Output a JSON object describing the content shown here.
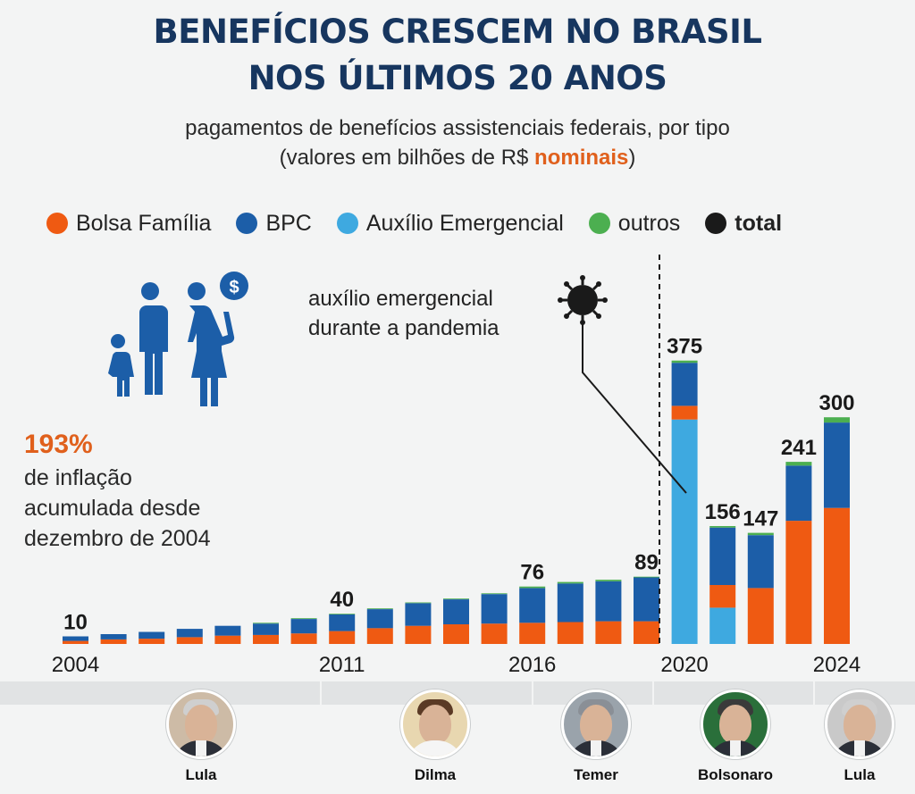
{
  "title": {
    "line1": "BENEFÍCIOS CRESCEM NO BRASIL",
    "line2": "NOS ÚLTIMOS 20 ANOS"
  },
  "subtitle": {
    "line1": "pagamentos de benefícios assistenciais federais, por tipo",
    "line2_prefix": "(valores em bilhões de R$ ",
    "line2_highlight": "nominais",
    "line2_suffix": ")"
  },
  "legend": [
    {
      "label": "Bolsa Família",
      "color": "#ef5a12",
      "bold": false
    },
    {
      "label": "BPC",
      "color": "#1c5ea8",
      "bold": false
    },
    {
      "label": "Auxílio Emergencial",
      "color": "#3ea9e0",
      "bold": false
    },
    {
      "label": "outros",
      "color": "#4caf50",
      "bold": false
    },
    {
      "label": "total",
      "color": "#1a1a1a",
      "bold": true
    }
  ],
  "inflation": {
    "value": "193%",
    "line1": "de inflação",
    "line2": "acumulada desde",
    "line3": "dezembro de 2004"
  },
  "annotation": {
    "line1": "auxílio emergencial",
    "line2": "durante a pandemia"
  },
  "presidents": [
    {
      "name": "Lula"
    },
    {
      "name": "Dilma"
    },
    {
      "name": "Temer"
    },
    {
      "name": "Bolsonaro"
    },
    {
      "name": "Lula"
    }
  ],
  "chart_data": {
    "type": "bar",
    "stacked": true,
    "categories": [
      "2004",
      "2005",
      "2006",
      "2007",
      "2008",
      "2009",
      "2010",
      "2011",
      "2012",
      "2013",
      "2014",
      "2015",
      "2016",
      "2017",
      "2018",
      "2019",
      "2020",
      "2021",
      "2022",
      "2023",
      "2024"
    ],
    "x_tick_labels": [
      "2004",
      "2011",
      "2016",
      "2020",
      "2024"
    ],
    "series": [
      {
        "name": "Bolsa Família",
        "color": "#ef5a12",
        "values": [
          4,
          6,
          7,
          9,
          11,
          12,
          14,
          17,
          21,
          24,
          26,
          27,
          28,
          29,
          30,
          30,
          18,
          30,
          74,
          163,
          180
        ]
      },
      {
        "name": "BPC",
        "color": "#1c5ea8",
        "values": [
          6,
          7,
          9,
          11,
          13,
          15,
          19,
          22,
          25,
          30,
          33,
          39,
          46,
          51,
          53,
          58,
          57,
          76,
          70,
          73,
          113
        ]
      },
      {
        "name": "Auxílio Emergencial",
        "color": "#3ea9e0",
        "values": [
          0,
          0,
          0,
          0,
          0,
          0,
          0,
          0,
          0,
          0,
          0,
          0,
          0,
          0,
          0,
          0,
          297,
          48,
          0,
          0,
          0
        ]
      },
      {
        "name": "outros",
        "color": "#4caf50",
        "values": [
          0,
          0,
          0,
          0,
          0,
          1,
          1,
          1,
          1,
          1,
          1,
          1,
          2,
          2,
          2,
          1,
          3,
          2,
          3,
          5,
          7
        ]
      }
    ],
    "totals": [
      10,
      13,
      16,
      20,
      24,
      28,
      34,
      40,
      47,
      55,
      60,
      67,
      76,
      82,
      85,
      89,
      375,
      156,
      147,
      241,
      300
    ],
    "labeled_totals": {
      "2004": "10",
      "2011": "40",
      "2016": "76",
      "2019": "89",
      "2020": "375",
      "2021": "156",
      "2022": "147",
      "2023": "241",
      "2024": "300"
    },
    "ylim": [
      0,
      390
    ],
    "grid": false,
    "legend_position": "top"
  }
}
